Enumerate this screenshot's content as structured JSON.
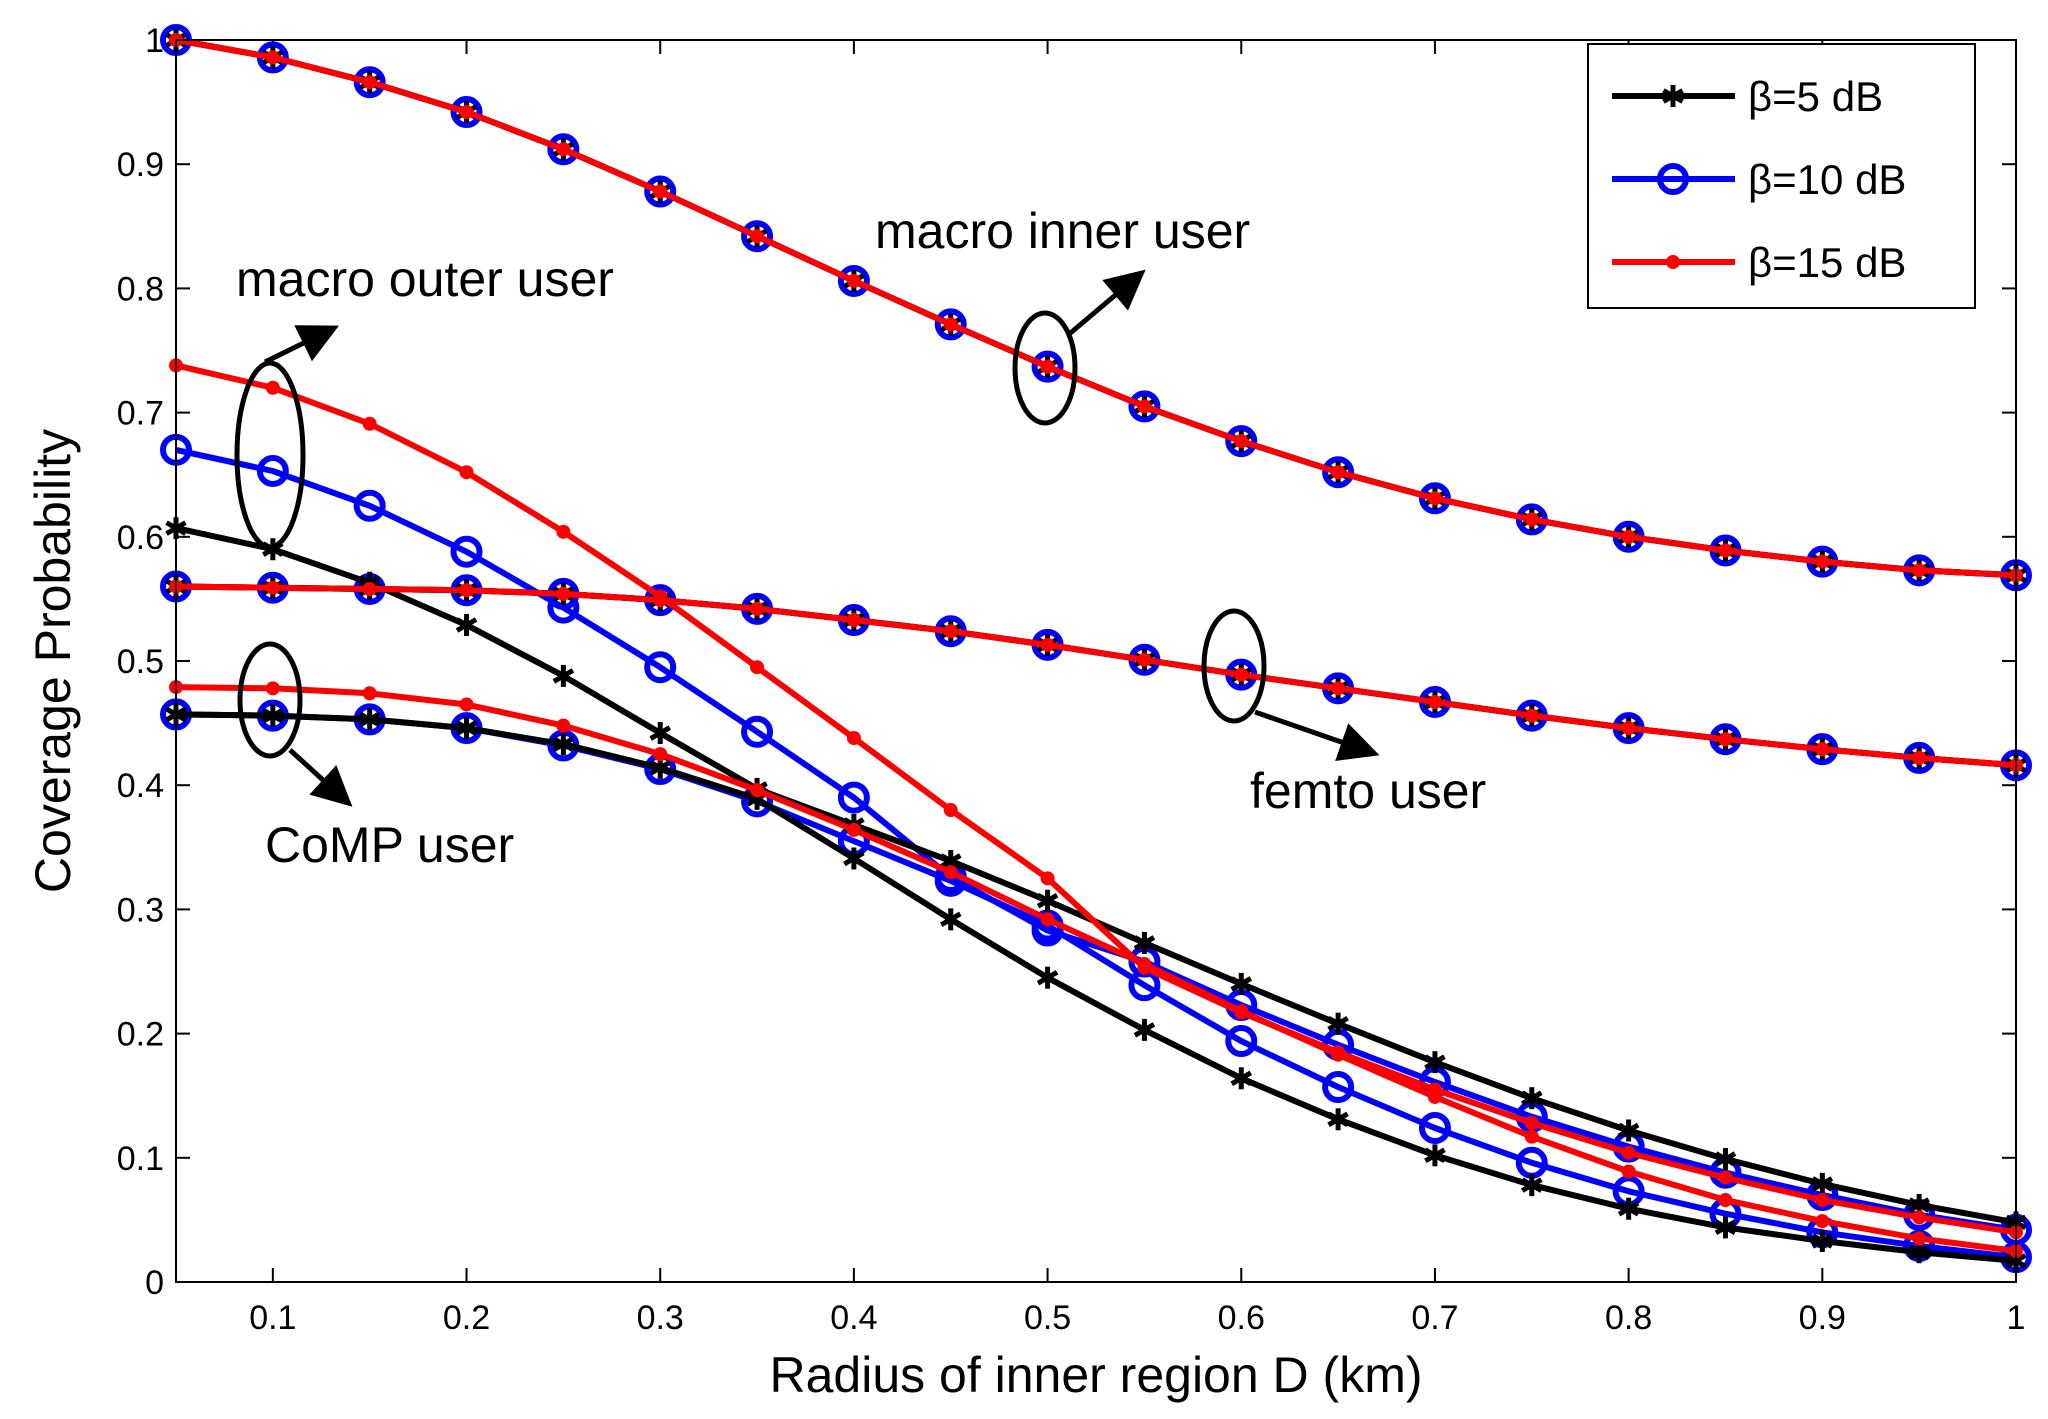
{
  "chart_data": {
    "type": "line",
    "title": "",
    "xlabel": "Radius of inner region D (km)",
    "ylabel": "Coverage Probability",
    "xlim": [
      0.05,
      1.0
    ],
    "ylim": [
      0,
      1.0
    ],
    "xticks": [
      "0.1",
      "0.2",
      "0.3",
      "0.4",
      "0.5",
      "0.6",
      "0.7",
      "0.8",
      "0.9",
      "1"
    ],
    "xtick_values": [
      0.1,
      0.2,
      0.3,
      0.4,
      0.5,
      0.6,
      0.7,
      0.8,
      0.9,
      1.0
    ],
    "yticks": [
      "0",
      "0.1",
      "0.2",
      "0.3",
      "0.4",
      "0.5",
      "0.6",
      "0.7",
      "0.8",
      "0.9",
      "1"
    ],
    "ytick_values": [
      0,
      0.1,
      0.2,
      0.3,
      0.4,
      0.5,
      0.6,
      0.7,
      0.8,
      0.9,
      1.0
    ],
    "grid": false,
    "legend_position": "top-right",
    "legend": [
      {
        "label": "β=5 dB",
        "color": "#000000",
        "marker": "asterisk"
      },
      {
        "label": "β=10 dB",
        "color": "#0000ff",
        "marker": "circle"
      },
      {
        "label": "β=15 dB",
        "color": "#ff0000",
        "marker": "dot"
      }
    ],
    "x": [
      0.05,
      0.1,
      0.15,
      0.2,
      0.25,
      0.3,
      0.35,
      0.4,
      0.45,
      0.5,
      0.55,
      0.6,
      0.65,
      0.7,
      0.75,
      0.8,
      0.85,
      0.9,
      0.95,
      1.0
    ],
    "series": [
      {
        "name": "macro inner user (β=5 dB)",
        "group": "macro inner user",
        "color": "#000000",
        "marker": "asterisk",
        "values": [
          1.0,
          0.986,
          0.966,
          0.942,
          0.912,
          0.878,
          0.842,
          0.806,
          0.771,
          0.737,
          0.705,
          0.677,
          0.652,
          0.631,
          0.614,
          0.6,
          0.589,
          0.58,
          0.573,
          0.569
        ]
      },
      {
        "name": "macro inner user (β=10 dB)",
        "group": "macro inner user",
        "color": "#0000ff",
        "marker": "circle",
        "values": [
          1.0,
          0.986,
          0.966,
          0.942,
          0.912,
          0.878,
          0.842,
          0.806,
          0.771,
          0.737,
          0.705,
          0.677,
          0.652,
          0.631,
          0.614,
          0.6,
          0.589,
          0.58,
          0.573,
          0.569
        ]
      },
      {
        "name": "macro inner user (β=15 dB)",
        "group": "macro inner user",
        "color": "#ff0000",
        "marker": "dot",
        "values": [
          1.0,
          0.986,
          0.966,
          0.942,
          0.912,
          0.878,
          0.842,
          0.806,
          0.771,
          0.737,
          0.705,
          0.677,
          0.652,
          0.631,
          0.614,
          0.6,
          0.589,
          0.58,
          0.573,
          0.569
        ]
      },
      {
        "name": "femto user (β=5 dB)",
        "group": "femto user",
        "color": "#000000",
        "marker": "asterisk",
        "values": [
          0.56,
          0.559,
          0.558,
          0.557,
          0.554,
          0.549,
          0.542,
          0.533,
          0.524,
          0.513,
          0.501,
          0.489,
          0.478,
          0.467,
          0.456,
          0.446,
          0.437,
          0.429,
          0.422,
          0.416
        ]
      },
      {
        "name": "femto user (β=10 dB)",
        "group": "femto user",
        "color": "#0000ff",
        "marker": "circle",
        "values": [
          0.56,
          0.559,
          0.558,
          0.557,
          0.554,
          0.549,
          0.542,
          0.533,
          0.524,
          0.513,
          0.501,
          0.489,
          0.478,
          0.467,
          0.456,
          0.446,
          0.437,
          0.429,
          0.422,
          0.416
        ]
      },
      {
        "name": "femto user (β=15 dB)",
        "group": "femto user",
        "color": "#ff0000",
        "marker": "dot",
        "values": [
          0.56,
          0.559,
          0.558,
          0.557,
          0.554,
          0.549,
          0.542,
          0.533,
          0.524,
          0.513,
          0.501,
          0.489,
          0.478,
          0.467,
          0.456,
          0.446,
          0.437,
          0.429,
          0.422,
          0.416
        ]
      },
      {
        "name": "macro outer user (β=5 dB)",
        "group": "macro outer user",
        "color": "#000000",
        "marker": "asterisk",
        "values": [
          0.607,
          0.59,
          0.563,
          0.529,
          0.488,
          0.442,
          0.397,
          0.368,
          0.339,
          0.307,
          0.273,
          0.24,
          0.208,
          0.177,
          0.148,
          0.122,
          0.099,
          0.079,
          0.062,
          0.048
        ]
      },
      {
        "name": "macro outer user (β=10 dB)",
        "group": "macro outer user",
        "color": "#0000ff",
        "marker": "circle",
        "values": [
          0.67,
          0.653,
          0.625,
          0.588,
          0.543,
          0.495,
          0.443,
          0.39,
          0.326,
          0.283,
          0.258,
          0.223,
          0.191,
          0.161,
          0.133,
          0.109,
          0.088,
          0.07,
          0.054,
          0.042
        ]
      },
      {
        "name": "macro outer user (β=15 dB)",
        "group": "macro outer user",
        "color": "#ff0000",
        "marker": "dot",
        "values": [
          0.738,
          0.72,
          0.691,
          0.652,
          0.604,
          0.552,
          0.495,
          0.438,
          0.38,
          0.325,
          0.253,
          0.217,
          0.185,
          0.155,
          0.128,
          0.104,
          0.084,
          0.066,
          0.052,
          0.04
        ]
      },
      {
        "name": "CoMP user (β=5 dB)",
        "group": "CoMP user",
        "color": "#000000",
        "marker": "asterisk",
        "values": [
          0.457,
          0.456,
          0.453,
          0.446,
          0.433,
          0.414,
          0.389,
          0.341,
          0.292,
          0.245,
          0.203,
          0.164,
          0.131,
          0.102,
          0.078,
          0.059,
          0.044,
          0.033,
          0.024,
          0.017
        ]
      },
      {
        "name": "CoMP user (β=10 dB)",
        "group": "CoMP user",
        "color": "#0000ff",
        "marker": "circle",
        "values": [
          0.457,
          0.456,
          0.453,
          0.446,
          0.432,
          0.413,
          0.387,
          0.355,
          0.323,
          0.287,
          0.239,
          0.194,
          0.157,
          0.124,
          0.096,
          0.073,
          0.055,
          0.04,
          0.029,
          0.02
        ]
      },
      {
        "name": "CoMP user (β=15 dB)",
        "group": "CoMP user",
        "color": "#ff0000",
        "marker": "dot",
        "values": [
          0.479,
          0.478,
          0.474,
          0.465,
          0.448,
          0.425,
          0.396,
          0.364,
          0.33,
          0.292,
          0.256,
          0.218,
          0.183,
          0.149,
          0.117,
          0.089,
          0.066,
          0.049,
          0.035,
          0.025
        ]
      }
    ],
    "annotations": [
      {
        "text": "macro inner user",
        "target": "macro inner user"
      },
      {
        "text": "macro outer user",
        "target": "macro outer user"
      },
      {
        "text": "femto user",
        "target": "femto user"
      },
      {
        "text": "CoMP user",
        "target": "CoMP user"
      }
    ]
  }
}
